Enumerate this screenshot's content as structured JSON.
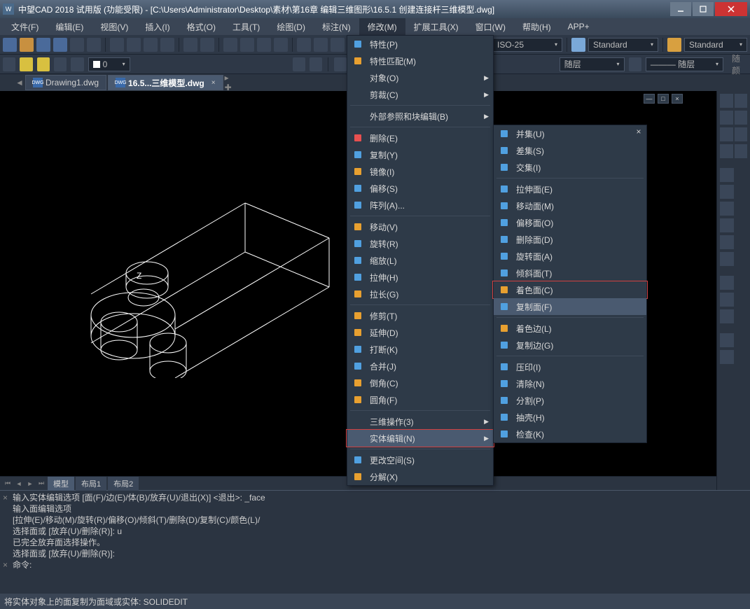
{
  "window": {
    "title": "中望CAD 2018 试用版 (功能受限) - [C:\\Users\\Administrator\\Desktop\\素材\\第16章 编辑三维图形\\16.5.1 创建连接杆三维模型.dwg]",
    "app_badge": "W"
  },
  "menubar": {
    "items": [
      "文件(F)",
      "编辑(E)",
      "视图(V)",
      "插入(I)",
      "格式(O)",
      "工具(T)",
      "绘图(D)",
      "标注(N)",
      "修改(M)",
      "扩展工具(X)",
      "窗口(W)",
      "帮助(H)",
      "APP+"
    ],
    "active_index": 8
  },
  "toolbar_top": {
    "combo_iso": "ISO-25",
    "combo_std1": "Standard",
    "combo_std2": "Standard"
  },
  "toolbar2": {
    "layer_combo": "随层",
    "sublayer1": "随层",
    "sublayer2": "随层",
    "linetype": "——— 随层"
  },
  "tabs": {
    "tab1": "Drawing1.dwg",
    "tab2": "16.5...三维模型.dwg"
  },
  "layout_tabs": {
    "model": "模型",
    "l1": "布局1",
    "l2": "布局2"
  },
  "menu_modify": {
    "items": [
      {
        "label": "特性(P)",
        "icon": "properties"
      },
      {
        "label": "特性匹配(M)",
        "icon": "match"
      },
      {
        "label": "对象(O)",
        "sub": true
      },
      {
        "label": "剪裁(C)",
        "sub": true
      },
      {
        "sep": true
      },
      {
        "label": "外部参照和块编辑(B)",
        "sub": true
      },
      {
        "sep": true
      },
      {
        "label": "删除(E)",
        "icon": "erase"
      },
      {
        "label": "复制(Y)",
        "icon": "copy"
      },
      {
        "label": "镜像(I)",
        "icon": "mirror"
      },
      {
        "label": "偏移(S)",
        "icon": "offset"
      },
      {
        "label": "阵列(A)...",
        "icon": "array"
      },
      {
        "sep": true
      },
      {
        "label": "移动(V)",
        "icon": "move"
      },
      {
        "label": "旋转(R)",
        "icon": "rotate"
      },
      {
        "label": "缩放(L)",
        "icon": "scale"
      },
      {
        "label": "拉伸(H)",
        "icon": "stretch"
      },
      {
        "label": "拉长(G)",
        "icon": "lengthen"
      },
      {
        "sep": true
      },
      {
        "label": "修剪(T)",
        "icon": "trim"
      },
      {
        "label": "延伸(D)",
        "icon": "extend"
      },
      {
        "label": "打断(K)",
        "icon": "break"
      },
      {
        "label": "合并(J)",
        "icon": "join"
      },
      {
        "label": "倒角(C)",
        "icon": "chamfer"
      },
      {
        "label": "圆角(F)",
        "icon": "fillet"
      },
      {
        "sep": true
      },
      {
        "label": "三维操作(3)",
        "sub": true
      },
      {
        "label": "实体编辑(N)",
        "sub": true,
        "hl": true,
        "redbox": true
      },
      {
        "sep": true
      },
      {
        "label": "更改空间(S)",
        "icon": "chspace"
      },
      {
        "label": "分解(X)",
        "icon": "explode"
      }
    ]
  },
  "menu_solid": {
    "items": [
      {
        "label": "并集(U)",
        "icon": "union"
      },
      {
        "label": "差集(S)",
        "icon": "subtract"
      },
      {
        "label": "交集(I)",
        "icon": "intersect"
      },
      {
        "sep": true
      },
      {
        "label": "拉伸面(E)",
        "icon": "extrudef"
      },
      {
        "label": "移动面(M)",
        "icon": "movef"
      },
      {
        "label": "偏移面(O)",
        "icon": "offsetf"
      },
      {
        "label": "删除面(D)",
        "icon": "deletef"
      },
      {
        "label": "旋转面(A)",
        "icon": "rotatef"
      },
      {
        "label": "倾斜面(T)",
        "icon": "taperf"
      },
      {
        "label": "着色面(C)",
        "icon": "colorf",
        "redbox": true
      },
      {
        "label": "复制面(F)",
        "icon": "copyf",
        "hl": true
      },
      {
        "sep": true
      },
      {
        "label": "着色边(L)",
        "icon": "coloredge"
      },
      {
        "label": "复制边(G)",
        "icon": "copyedge"
      },
      {
        "sep": true
      },
      {
        "label": "压印(I)",
        "icon": "imprint"
      },
      {
        "label": "清除(N)",
        "icon": "clean"
      },
      {
        "label": "分割(P)",
        "icon": "separate"
      },
      {
        "label": "抽壳(H)",
        "icon": "shell"
      },
      {
        "label": "检查(K)",
        "icon": "check"
      }
    ]
  },
  "command": {
    "lines": [
      "输入实体编辑选项 [面(F)/边(E)/体(B)/放弃(U)/退出(X)] <退出>: _face",
      "输入面编辑选项",
      "[拉伸(E)/移动(M)/旋转(R)/偏移(O)/倾斜(T)/删除(D)/复制(C)/颜色(L)/",
      "选择面或 [放弃(U)/删除(R)]: u",
      "已完全放弃面选择操作。",
      "选择面或 [放弃(U)/删除(R)]:",
      "命令:"
    ]
  },
  "statusbar": {
    "text": "将实体对象上的面复制为面域或实体: SOLIDEDIT"
  },
  "colors": {
    "accent": "#4a8ac8",
    "icon_orange": "#e8a030",
    "icon_yellow": "#e8d040",
    "icon_blue": "#50a0e0",
    "icon_green": "#60c060"
  },
  "canvas_label": "Z"
}
